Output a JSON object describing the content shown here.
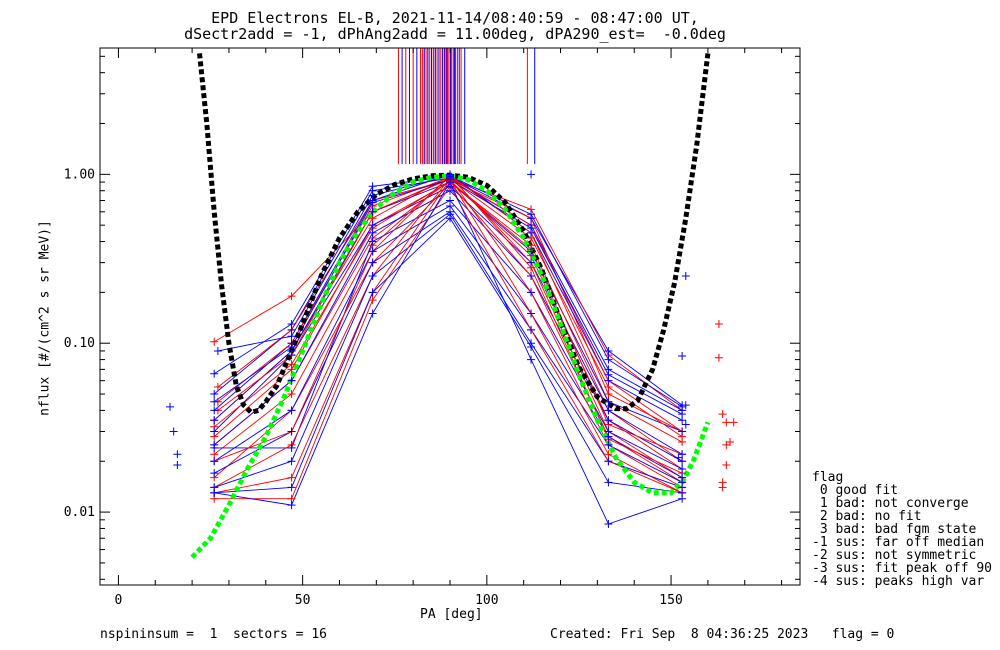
{
  "chart_data": {
    "type": "line",
    "title_line1": "EPD Electrons EL-B, 2021-11-14/08:40:59 - 08:47:00 UT,",
    "title_line2": "dSectr2add = -1, dPhAng2add = 11.00deg, dPA290_est=  -0.0deg",
    "xlabel": "PA [deg]",
    "ylabel": "nflux [#/(cm^2 s sr MeV)]",
    "xlim": [
      -5,
      185
    ],
    "ylim": [
      0.0037,
      5.6
    ],
    "yscale": "log",
    "x_ticks": [
      0,
      50,
      100,
      150
    ],
    "x_tick_labels": [
      "0",
      "50",
      "100",
      "150"
    ],
    "y_ticks": [
      0.01,
      0.1,
      1.0
    ],
    "y_tick_labels": [
      "0.01",
      "0.10",
      "1.00"
    ],
    "colors": {
      "red": "#ff0000",
      "blue": "#0000ff",
      "black": "#000000",
      "green": "#00ff00"
    },
    "black_fit": [
      [
        22,
        5.2
      ],
      [
        24,
        2.0
      ],
      [
        26,
        0.6
      ],
      [
        28,
        0.22
      ],
      [
        30,
        0.1
      ],
      [
        32,
        0.056
      ],
      [
        34,
        0.043
      ],
      [
        36,
        0.039
      ],
      [
        38,
        0.04
      ],
      [
        40,
        0.045
      ],
      [
        43,
        0.056
      ],
      [
        46,
        0.08
      ],
      [
        50,
        0.13
      ],
      [
        55,
        0.25
      ],
      [
        60,
        0.42
      ],
      [
        65,
        0.6
      ],
      [
        70,
        0.76
      ],
      [
        75,
        0.87
      ],
      [
        80,
        0.94
      ],
      [
        85,
        0.98
      ],
      [
        90,
        0.99
      ],
      [
        95,
        0.96
      ],
      [
        100,
        0.86
      ],
      [
        105,
        0.68
      ],
      [
        110,
        0.46
      ],
      [
        115,
        0.27
      ],
      [
        120,
        0.135
      ],
      [
        125,
        0.072
      ],
      [
        130,
        0.048
      ],
      [
        135,
        0.041
      ],
      [
        138,
        0.041
      ],
      [
        141,
        0.046
      ],
      [
        145,
        0.07
      ],
      [
        148,
        0.12
      ],
      [
        151,
        0.23
      ],
      [
        154,
        0.55
      ],
      [
        157,
        1.5
      ],
      [
        160,
        5.2
      ]
    ],
    "green_fit": [
      [
        20,
        0.0054
      ],
      [
        25,
        0.007
      ],
      [
        30,
        0.011
      ],
      [
        35,
        0.018
      ],
      [
        40,
        0.028
      ],
      [
        45,
        0.048
      ],
      [
        50,
        0.09
      ],
      [
        55,
        0.17
      ],
      [
        60,
        0.3
      ],
      [
        65,
        0.46
      ],
      [
        70,
        0.63
      ],
      [
        75,
        0.78
      ],
      [
        80,
        0.9
      ],
      [
        85,
        0.96
      ],
      [
        90,
        0.98
      ],
      [
        95,
        0.93
      ],
      [
        100,
        0.8
      ],
      [
        105,
        0.62
      ],
      [
        110,
        0.42
      ],
      [
        115,
        0.25
      ],
      [
        120,
        0.13
      ],
      [
        125,
        0.065
      ],
      [
        130,
        0.035
      ],
      [
        135,
        0.021
      ],
      [
        140,
        0.015
      ],
      [
        145,
        0.013
      ],
      [
        150,
        0.013
      ],
      [
        153,
        0.015
      ],
      [
        156,
        0.02
      ],
      [
        158,
        0.026
      ],
      [
        160,
        0.034
      ]
    ],
    "top_markers": {
      "red": [
        76,
        78,
        80,
        82,
        82.5,
        83,
        83.5,
        84,
        84.5,
        85,
        85.5,
        86,
        86.5,
        87,
        87.5,
        88,
        88.5,
        89,
        89.5,
        90,
        90.5,
        91,
        91.5,
        92,
        93,
        111
      ],
      "blue": [
        77,
        79,
        81,
        83,
        84,
        85,
        86,
        87,
        88,
        88.6,
        89.2,
        90.2,
        91.2,
        92.5,
        94,
        113
      ],
      "top_value": 5.6,
      "bottom_value": 1.15
    },
    "outliers_blue": [
      [
        14,
        0.042
      ],
      [
        15,
        0.03
      ],
      [
        16,
        0.022
      ],
      [
        16,
        0.019
      ],
      [
        154,
        0.25
      ],
      [
        153,
        0.084
      ],
      [
        154,
        0.043
      ],
      [
        154,
        0.033
      ],
      [
        152,
        0.021
      ],
      [
        112,
        1.0
      ]
    ],
    "outliers_red": [
      [
        163,
        0.13
      ],
      [
        163,
        0.082
      ],
      [
        164,
        0.038
      ],
      [
        165,
        0.034
      ],
      [
        166,
        0.026
      ],
      [
        165,
        0.025
      ],
      [
        165,
        0.019
      ],
      [
        164,
        0.015
      ],
      [
        164,
        0.014
      ],
      [
        167,
        0.034
      ]
    ],
    "series_note": "",
    "red_series": [
      [
        [
          26,
          0.102
        ],
        [
          47,
          0.19
        ],
        [
          69,
          0.6
        ],
        [
          90,
          0.95
        ],
        [
          112,
          0.62
        ],
        [
          133,
          0.085
        ],
        [
          153,
          0.04
        ]
      ],
      [
        [
          27,
          0.055
        ],
        [
          47,
          0.12
        ],
        [
          69,
          0.7
        ],
        [
          90,
          0.93
        ],
        [
          112,
          0.55
        ],
        [
          133,
          0.05
        ],
        [
          153,
          0.03
        ]
      ],
      [
        [
          26,
          0.035
        ],
        [
          47,
          0.09
        ],
        [
          69,
          0.55
        ],
        [
          90,
          0.98
        ],
        [
          112,
          0.45
        ],
        [
          133,
          0.045
        ],
        [
          153,
          0.026
        ]
      ],
      [
        [
          26,
          0.028
        ],
        [
          47,
          0.07
        ],
        [
          69,
          0.5
        ],
        [
          90,
          0.9
        ],
        [
          112,
          0.38
        ],
        [
          133,
          0.04
        ],
        [
          153,
          0.02
        ]
      ],
      [
        [
          26,
          0.025
        ],
        [
          47,
          0.06
        ],
        [
          69,
          0.42
        ],
        [
          90,
          0.92
        ],
        [
          112,
          0.33
        ],
        [
          133,
          0.035
        ],
        [
          153,
          0.018
        ]
      ],
      [
        [
          26,
          0.022
        ],
        [
          47,
          0.05
        ],
        [
          69,
          0.38
        ],
        [
          90,
          0.97
        ],
        [
          112,
          0.3
        ],
        [
          133,
          0.03
        ],
        [
          153,
          0.016
        ]
      ],
      [
        [
          26,
          0.016
        ],
        [
          47,
          0.04
        ],
        [
          69,
          0.3
        ],
        [
          90,
          0.88
        ],
        [
          112,
          0.25
        ],
        [
          133,
          0.028
        ],
        [
          153,
          0.015
        ]
      ],
      [
        [
          26,
          0.014
        ],
        [
          47,
          0.025
        ],
        [
          69,
          0.25
        ],
        [
          90,
          0.95
        ],
        [
          112,
          0.2
        ],
        [
          133,
          0.025
        ],
        [
          153,
          0.014
        ]
      ],
      [
        [
          26,
          0.013
        ],
        [
          47,
          0.016
        ],
        [
          69,
          0.2
        ],
        [
          90,
          0.93
        ],
        [
          112,
          0.15
        ],
        [
          133,
          0.022
        ],
        [
          153,
          0.013
        ]
      ],
      [
        [
          26,
          0.012
        ],
        [
          47,
          0.012
        ],
        [
          69,
          0.18
        ],
        [
          90,
          0.85
        ],
        [
          112,
          0.12
        ],
        [
          133,
          0.02
        ],
        [
          153,
          0.013
        ]
      ],
      [
        [
          27,
          0.045
        ],
        [
          47,
          0.1
        ],
        [
          69,
          0.65
        ],
        [
          90,
          0.96
        ],
        [
          112,
          0.5
        ],
        [
          133,
          0.06
        ],
        [
          153,
          0.03
        ]
      ],
      [
        [
          27,
          0.04
        ],
        [
          47,
          0.085
        ],
        [
          69,
          0.6
        ],
        [
          90,
          0.94
        ],
        [
          112,
          0.42
        ],
        [
          133,
          0.055
        ],
        [
          153,
          0.028
        ]
      ],
      [
        [
          26,
          0.032
        ],
        [
          47,
          0.075
        ],
        [
          69,
          0.48
        ],
        [
          90,
          0.91
        ],
        [
          112,
          0.36
        ],
        [
          133,
          0.033
        ],
        [
          153,
          0.022
        ]
      ],
      [
        [
          26,
          0.02
        ],
        [
          47,
          0.03
        ],
        [
          69,
          0.35
        ],
        [
          90,
          0.99
        ],
        [
          112,
          0.28
        ],
        [
          133,
          0.027
        ],
        [
          153,
          0.017
        ]
      ]
    ],
    "blue_series": [
      [
        [
          26,
          0.066
        ],
        [
          47,
          0.13
        ],
        [
          69,
          0.85
        ],
        [
          90,
          0.97
        ],
        [
          112,
          0.55
        ],
        [
          133,
          0.09
        ],
        [
          153,
          0.043
        ]
      ],
      [
        [
          26,
          0.05
        ],
        [
          47,
          0.12
        ],
        [
          69,
          0.8
        ],
        [
          90,
          0.95
        ],
        [
          112,
          0.5
        ],
        [
          133,
          0.07
        ],
        [
          153,
          0.04
        ]
      ],
      [
        [
          26,
          0.04
        ],
        [
          47,
          0.1
        ],
        [
          69,
          0.7
        ],
        [
          90,
          1.0
        ],
        [
          112,
          0.45
        ],
        [
          133,
          0.06
        ],
        [
          153,
          0.035
        ]
      ],
      [
        [
          26,
          0.035
        ],
        [
          47,
          0.09
        ],
        [
          69,
          0.6
        ],
        [
          90,
          0.9
        ],
        [
          112,
          0.35
        ],
        [
          133,
          0.045
        ],
        [
          153,
          0.03
        ]
      ],
      [
        [
          26,
          0.03
        ],
        [
          47,
          0.085
        ],
        [
          69,
          0.5
        ],
        [
          90,
          0.85
        ],
        [
          112,
          0.3
        ],
        [
          133,
          0.04
        ],
        [
          153,
          0.022
        ]
      ],
      [
        [
          26,
          0.025
        ],
        [
          47,
          0.06
        ],
        [
          69,
          0.45
        ],
        [
          90,
          0.8
        ],
        [
          112,
          0.25
        ],
        [
          133,
          0.035
        ],
        [
          153,
          0.02
        ]
      ],
      [
        [
          26,
          0.024
        ],
        [
          47,
          0.024
        ],
        [
          69,
          0.4
        ],
        [
          90,
          0.7
        ],
        [
          112,
          0.2
        ],
        [
          133,
          0.03
        ],
        [
          153,
          0.018
        ]
      ],
      [
        [
          26,
          0.02
        ],
        [
          47,
          0.04
        ],
        [
          69,
          0.35
        ],
        [
          90,
          0.65
        ],
        [
          112,
          0.15
        ],
        [
          133,
          0.028
        ],
        [
          153,
          0.016
        ]
      ],
      [
        [
          26,
          0.017
        ],
        [
          47,
          0.03
        ],
        [
          69,
          0.3
        ],
        [
          90,
          0.6
        ],
        [
          112,
          0.12
        ],
        [
          133,
          0.025
        ],
        [
          153,
          0.015
        ]
      ],
      [
        [
          26,
          0.014
        ],
        [
          47,
          0.02
        ],
        [
          69,
          0.25
        ],
        [
          90,
          0.58
        ],
        [
          112,
          0.1
        ],
        [
          133,
          0.02
        ],
        [
          153,
          0.014
        ]
      ],
      [
        [
          26,
          0.013
        ],
        [
          47,
          0.014
        ],
        [
          69,
          0.2
        ],
        [
          90,
          0.55
        ],
        [
          112,
          0.095
        ],
        [
          133,
          0.015
        ],
        [
          153,
          0.013
        ]
      ],
      [
        [
          26,
          0.013
        ],
        [
          47,
          0.011
        ],
        [
          69,
          0.15
        ],
        [
          90,
          0.9
        ],
        [
          112,
          0.08
        ],
        [
          133,
          0.0085
        ],
        [
          153,
          0.012
        ]
      ],
      [
        [
          27,
          0.09
        ],
        [
          47,
          0.11
        ],
        [
          69,
          0.75
        ],
        [
          90,
          0.98
        ],
        [
          112,
          0.58
        ],
        [
          133,
          0.08
        ],
        [
          153,
          0.042
        ]
      ],
      [
        [
          26,
          0.045
        ],
        [
          47,
          0.095
        ],
        [
          69,
          0.68
        ],
        [
          90,
          0.93
        ],
        [
          112,
          0.48
        ],
        [
          133,
          0.065
        ],
        [
          153,
          0.038
        ]
      ]
    ]
  },
  "legend": {
    "title": "flag",
    "items": [
      " 0 good fit",
      " 1 bad: not converge",
      " 2 bad: no fit",
      " 3 bad: bad fgm state",
      "-1 sus: far off median",
      "-2 sus: not symmetric",
      "-3 sus: fit peak off 90",
      "-4 sus: peaks high var"
    ]
  },
  "footer": {
    "left": "nspininsum =  1  sectors = 16",
    "right": "Created: Fri Sep  8 04:36:25 2023   flag = 0"
  }
}
